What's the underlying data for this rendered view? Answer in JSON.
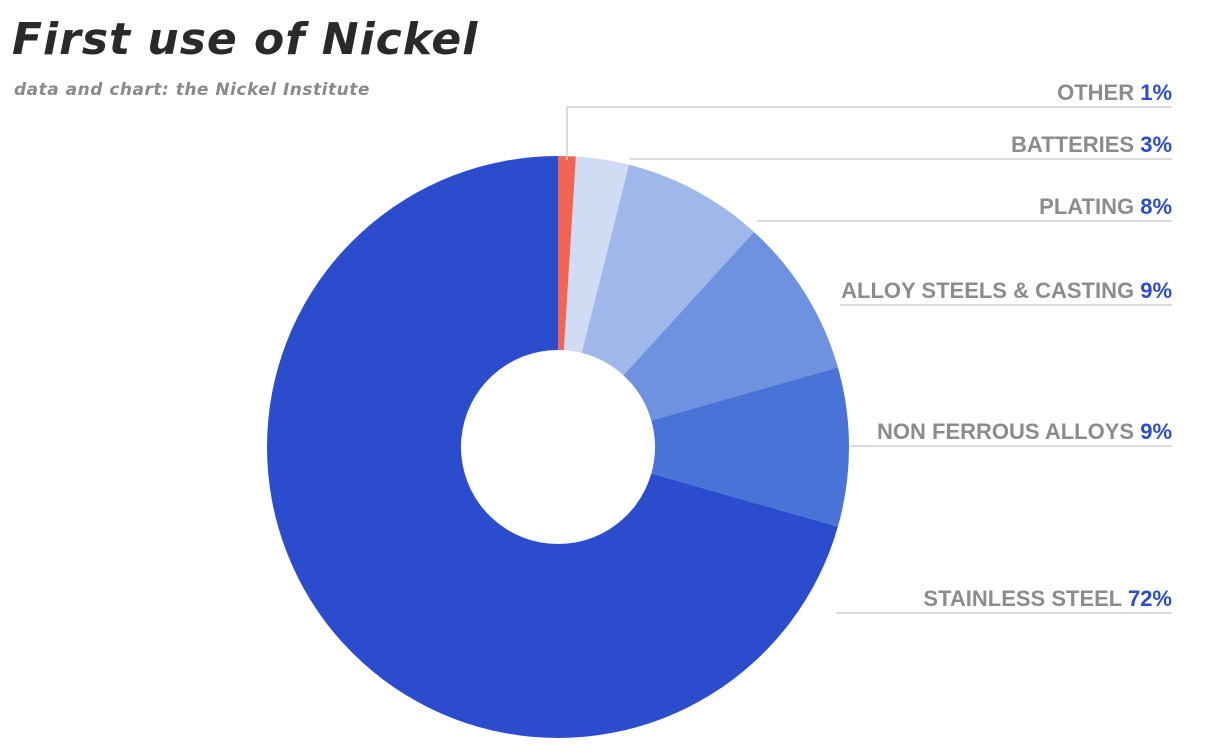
{
  "header": {
    "title": "First use of Nickel",
    "subtitle": "data and chart: the Nickel Institute"
  },
  "colors": {
    "value_text": "#2b4ccc",
    "label_text": "#8c8c8c",
    "leader_line": "#cfcfcf"
  },
  "chart_data": {
    "type": "pie",
    "style": "donut",
    "title": "First use of Nickel",
    "subtitle": "data and chart: the Nickel Institute",
    "slices": [
      {
        "label": "OTHER",
        "value": 1,
        "value_label": "1%",
        "color": "#f26454"
      },
      {
        "label": "BATTERIES",
        "value": 3,
        "value_label": "3%",
        "color": "#d0dbf4"
      },
      {
        "label": "PLATING",
        "value": 8,
        "value_label": "8%",
        "color": "#a0b7ea"
      },
      {
        "label": "ALLOY STEELS & CASTING",
        "value": 9,
        "value_label": "9%",
        "color": "#6e92df"
      },
      {
        "label": "NON FERROUS ALLOYS",
        "value": 9,
        "value_label": "9%",
        "color": "#4a73d8"
      },
      {
        "label": "STAINLESS STEEL",
        "value": 72,
        "value_label": "72%",
        "color": "#2b4ccc"
      }
    ],
    "direction": "clockwise",
    "start": "top",
    "legend": "right, label per slice with leader line"
  }
}
